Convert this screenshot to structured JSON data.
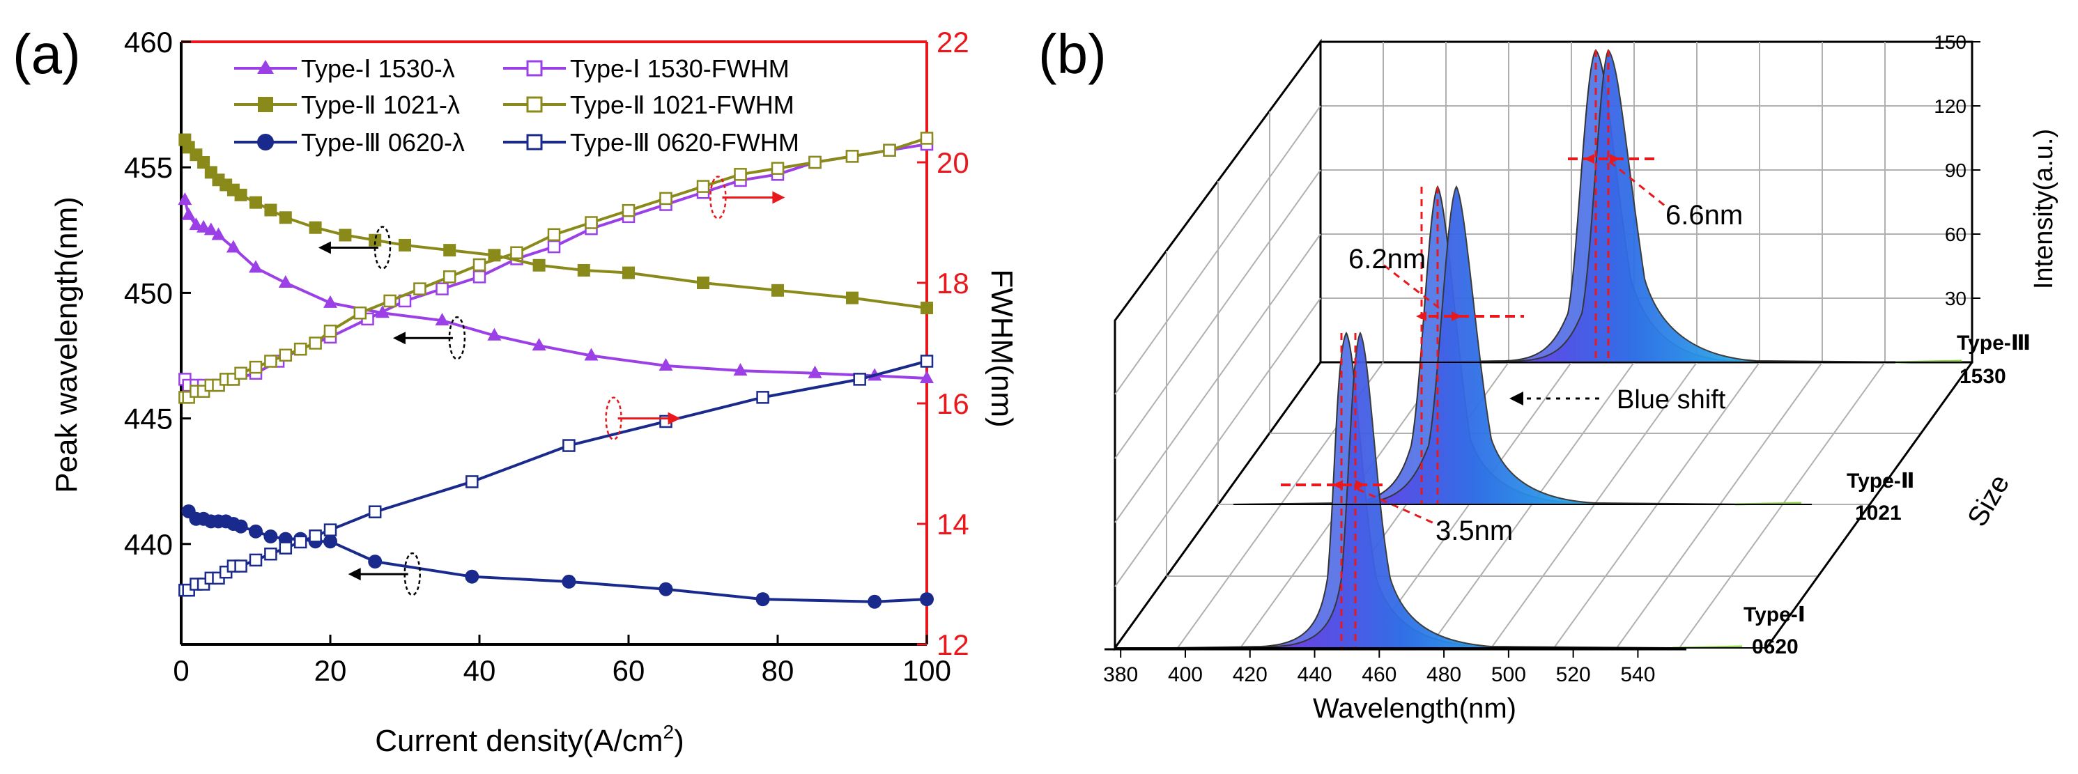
{
  "figure": {
    "left_label": "(a)",
    "right_label": "(b)"
  },
  "chart_data": [
    {
      "type": "line",
      "panel": "(a)",
      "xlabel": "Current density(A/cm",
      "xlabel_sup": "2",
      "xlabel_end": ")",
      "ylabel_left": "Peak wavelength(nm)",
      "ylabel_right": "FWHM(nm)",
      "xlim": [
        0,
        100
      ],
      "ylim_left": [
        436,
        460
      ],
      "ylim_right": [
        12,
        22
      ],
      "x_ticks": [
        "0",
        "20",
        "40",
        "60",
        "80",
        "100"
      ],
      "y_left_ticks": [
        "440",
        "445",
        "450",
        "455",
        "460"
      ],
      "y_right_ticks": [
        "12",
        "14",
        "16",
        "18",
        "20",
        "22"
      ],
      "colors": {
        "type1": "#9b3fe6",
        "type2": "#8a8a1a",
        "type3": "#1a2a8c",
        "right_axis": "#e8181c",
        "left_arrow": "#000000"
      },
      "legend": [
        "Type-Ⅰ  1530-λ",
        "Type-Ⅰ  1530-FWHM",
        "Type-Ⅱ  1021-λ",
        "Type-Ⅱ  1021-FWHM",
        "Type-Ⅲ  0620-λ",
        "Type-Ⅲ  0620-FWHM"
      ],
      "series": [
        {
          "name": "Type-Ⅰ 1530-λ",
          "axis": "left",
          "marker": "triangle",
          "color_key": "type1",
          "x": [
            0.5,
            1,
            2,
            3,
            4,
            5,
            7,
            10,
            14,
            20,
            27,
            35,
            42,
            48,
            55,
            65,
            75,
            85,
            93,
            100
          ],
          "y": [
            453.7,
            453.1,
            452.7,
            452.6,
            452.5,
            452.3,
            451.8,
            451.0,
            450.4,
            449.6,
            449.2,
            448.9,
            448.3,
            447.9,
            447.5,
            447.1,
            446.9,
            446.8,
            446.7,
            446.6
          ]
        },
        {
          "name": "Type-Ⅰ 1530-FWHM",
          "axis": "right",
          "marker": "open-square",
          "color_key": "type1",
          "x": [
            0.5,
            1,
            2,
            3,
            4,
            5,
            7,
            10,
            13,
            16,
            20,
            25,
            30,
            35,
            40,
            45,
            50,
            55,
            60,
            65,
            70,
            75,
            80,
            85,
            90,
            95,
            100
          ],
          "y": [
            16.4,
            16.3,
            16.3,
            16.3,
            16.3,
            16.3,
            16.4,
            16.5,
            16.7,
            16.9,
            17.1,
            17.4,
            17.7,
            17.9,
            18.1,
            18.4,
            18.6,
            18.9,
            19.1,
            19.3,
            19.5,
            19.7,
            19.8,
            20.0,
            20.1,
            20.2,
            20.3
          ]
        },
        {
          "name": "Type-Ⅱ 1021-λ",
          "axis": "left",
          "marker": "square",
          "color_key": "type2",
          "x": [
            0.5,
            1,
            2,
            3,
            4,
            5,
            6,
            7,
            8,
            10,
            12,
            14,
            18,
            22,
            26,
            30,
            36,
            42,
            48,
            54,
            60,
            70,
            80,
            90,
            100
          ],
          "y": [
            456.1,
            455.8,
            455.5,
            455.2,
            454.8,
            454.5,
            454.3,
            454.1,
            453.9,
            453.6,
            453.3,
            453.0,
            452.6,
            452.3,
            452.1,
            451.9,
            451.7,
            451.5,
            451.1,
            450.9,
            450.8,
            450.4,
            450.1,
            449.8,
            449.4
          ]
        },
        {
          "name": "Type-Ⅱ 1021-FWHM",
          "axis": "right",
          "marker": "open-square",
          "color_key": "type2",
          "x": [
            0.5,
            1,
            2,
            3,
            4,
            5,
            6,
            7,
            8,
            10,
            12,
            14,
            16,
            18,
            20,
            24,
            28,
            32,
            36,
            40,
            45,
            50,
            55,
            60,
            65,
            70,
            75,
            80,
            85,
            90,
            95,
            100
          ],
          "y": [
            16.1,
            16.1,
            16.2,
            16.2,
            16.3,
            16.3,
            16.4,
            16.4,
            16.5,
            16.6,
            16.7,
            16.8,
            16.9,
            17.0,
            17.2,
            17.5,
            17.7,
            17.9,
            18.1,
            18.3,
            18.5,
            18.8,
            19.0,
            19.2,
            19.4,
            19.6,
            19.8,
            19.9,
            20.0,
            20.1,
            20.2,
            20.4
          ]
        },
        {
          "name": "Type-Ⅲ 0620-λ",
          "axis": "left",
          "marker": "circle",
          "color_key": "type3",
          "x": [
            1,
            2,
            3,
            4,
            5,
            6,
            7,
            8,
            10,
            12,
            14,
            16,
            18,
            20,
            26,
            39,
            52,
            65,
            78,
            93,
            100
          ],
          "y": [
            441.3,
            441.0,
            441.0,
            440.9,
            440.9,
            440.9,
            440.8,
            440.7,
            440.5,
            440.3,
            440.2,
            440.2,
            440.1,
            440.1,
            439.3,
            438.7,
            438.5,
            438.2,
            437.8,
            437.7,
            437.8
          ]
        },
        {
          "name": "Type-Ⅲ 0620-FWHM",
          "axis": "right",
          "marker": "open-square",
          "color_key": "type3",
          "x": [
            0.5,
            1,
            2,
            3,
            4,
            5,
            6,
            7,
            8,
            10,
            12,
            14,
            16,
            18,
            20,
            26,
            39,
            52,
            65,
            78,
            91,
            100
          ],
          "y": [
            12.9,
            12.9,
            13.0,
            13.0,
            13.1,
            13.1,
            13.2,
            13.3,
            13.3,
            13.4,
            13.5,
            13.6,
            13.7,
            13.8,
            13.9,
            14.2,
            14.7,
            15.3,
            15.7,
            16.1,
            16.4,
            16.7
          ]
        }
      ],
      "annotations": [
        {
          "series": "Type-Ⅰ",
          "direction": "left",
          "at_x": 37,
          "at_y_left": 448.2
        },
        {
          "series": "Type-Ⅰ",
          "direction": "right",
          "at_x": 58,
          "at_y_left": 445.0
        },
        {
          "series": "Type-Ⅱ",
          "direction": "left",
          "at_x": 27,
          "at_y_left": 451.8
        },
        {
          "series": "Type-Ⅱ",
          "direction": "right",
          "at_x": 72,
          "at_y_left": 453.8
        },
        {
          "series": "Type-Ⅲ",
          "direction": "left",
          "at_x": 31,
          "at_y_left": 438.8
        }
      ]
    },
    {
      "type": "area",
      "panel": "(b)",
      "xlabel": "Wavelength(nm)",
      "ylabel": "Intensity(a.u.)",
      "zlabel": "Size",
      "xlim": [
        375,
        555
      ],
      "zlim": [
        0,
        150
      ],
      "x_ticks": [
        "380",
        "400",
        "420",
        "440",
        "460",
        "480",
        "500",
        "520",
        "540"
      ],
      "z_ticks": [
        "30",
        "60",
        "90",
        "120",
        "150"
      ],
      "size_labels": [
        {
          "label": "Type-Ⅰ",
          "value": "0620"
        },
        {
          "label": "Type-Ⅱ",
          "value": "1021"
        },
        {
          "label": "Type-Ⅲ",
          "value": "1530"
        }
      ],
      "series": [
        {
          "name": "Type-Ⅰ 0620",
          "peaks_nm": [
            440,
            443.5
          ],
          "fwhm_shift_nm": 3.5,
          "peak_intensity": 128
        },
        {
          "name": "Type-Ⅱ 1021",
          "peaks_nm": [
            479,
            485.2
          ],
          "fwhm_shift_nm": 6.2,
          "peak_intensity": 130
        },
        {
          "name": "Type-Ⅲ 1530",
          "peaks_nm": [
            502,
            508.6
          ],
          "fwhm_shift_nm": 6.6,
          "peak_intensity": 138
        }
      ],
      "annotations": [
        "3.5nm",
        "6.2nm",
        "6.6nm",
        "Blue shift"
      ]
    }
  ]
}
